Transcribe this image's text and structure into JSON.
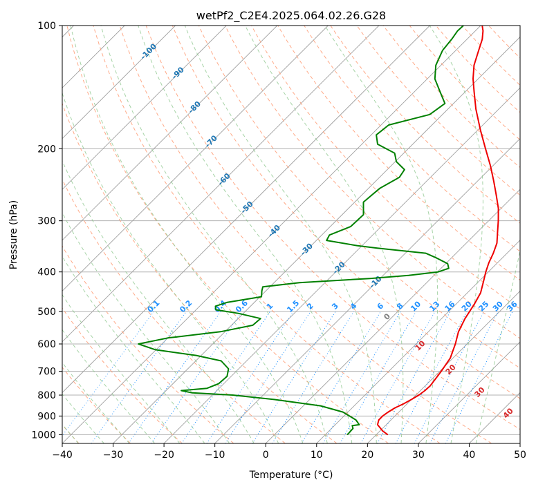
{
  "chart_data": {
    "type": "line",
    "title": "wetPf2_C2E4.2025.064.02.26.G28",
    "xlabel": "Temperature (°C)",
    "ylabel": "Pressure (hPa)",
    "xlim": [
      -40,
      50
    ],
    "ylim": [
      1050,
      100
    ],
    "y_scale": "log",
    "x_ticks": [
      "−40",
      "−30",
      "−20",
      "−10",
      "0",
      "10",
      "20",
      "30",
      "40",
      "50"
    ],
    "y_ticks": [
      "100",
      "200",
      "300",
      "400",
      "500",
      "600",
      "700",
      "800",
      "900",
      "1000"
    ],
    "grid": true,
    "colors": {
      "temperature": "#ee0000",
      "dewpoint": "#008000",
      "isotherm": "#a0a0a0",
      "dry_adiabat": "#ffa07a",
      "moist_adiabat": "#90c890",
      "mixing_ratio": "#1e90ff",
      "high_isotherm_label": "#1f77b4",
      "low_isotherm_label": "#d62728"
    },
    "series": [
      {
        "key": "temperature",
        "points": [
          [
            1000,
            22.3
          ],
          [
            980,
            20.6
          ],
          [
            960,
            19.3
          ],
          [
            945,
            18.3
          ],
          [
            920,
            17.6
          ],
          [
            900,
            17.6
          ],
          [
            880,
            17.9
          ],
          [
            860,
            18.4
          ],
          [
            840,
            19.3
          ],
          [
            820,
            20.0
          ],
          [
            800,
            20.6
          ],
          [
            780,
            20.9
          ],
          [
            760,
            21.0
          ],
          [
            700,
            20.3
          ],
          [
            650,
            19.5
          ],
          [
            600,
            17.7
          ],
          [
            560,
            15.9
          ],
          [
            520,
            14.6
          ],
          [
            480,
            13.6
          ],
          [
            450,
            12.6
          ],
          [
            420,
            10.8
          ],
          [
            400,
            9.5
          ],
          [
            380,
            8.3
          ],
          [
            360,
            7.3
          ],
          [
            340,
            6.0
          ],
          [
            320,
            4.0
          ],
          [
            300,
            1.9
          ],
          [
            280,
            -0.5
          ],
          [
            260,
            -3.5
          ],
          [
            240,
            -6.8
          ],
          [
            220,
            -10.5
          ],
          [
            200,
            -14.8
          ],
          [
            180,
            -19.5
          ],
          [
            160,
            -24.5
          ],
          [
            145,
            -28.3
          ],
          [
            135,
            -31.0
          ],
          [
            125,
            -33.5
          ],
          [
            115,
            -35.5
          ],
          [
            108,
            -37.0
          ],
          [
            103,
            -38.5
          ],
          [
            100,
            -39.7
          ]
        ]
      },
      {
        "key": "dewpoint",
        "points": [
          [
            1000,
            14.3
          ],
          [
            990,
            14.3
          ],
          [
            965,
            14.2
          ],
          [
            950,
            13.5
          ],
          [
            945,
            14.7
          ],
          [
            920,
            13.1
          ],
          [
            880,
            9.0
          ],
          [
            850,
            3.4
          ],
          [
            820,
            -7.0
          ],
          [
            800,
            -16.0
          ],
          [
            790,
            -24.4
          ],
          [
            780,
            -27.0
          ],
          [
            770,
            -22.4
          ],
          [
            750,
            -21.0
          ],
          [
            720,
            -20.8
          ],
          [
            690,
            -22.0
          ],
          [
            660,
            -25.0
          ],
          [
            640,
            -31.0
          ],
          [
            620,
            -40.1
          ],
          [
            600,
            -44.6
          ],
          [
            580,
            -40.0
          ],
          [
            560,
            -30.9
          ],
          [
            540,
            -25.8
          ],
          [
            520,
            -25.6
          ],
          [
            505,
            -31.0
          ],
          [
            495,
            -36.1
          ],
          [
            485,
            -36.9
          ],
          [
            475,
            -35.4
          ],
          [
            460,
            -29.7
          ],
          [
            445,
            -30.8
          ],
          [
            435,
            -31.4
          ],
          [
            425,
            -25.0
          ],
          [
            415,
            -12.0
          ],
          [
            408,
            -5.0
          ],
          [
            400,
            0.1
          ],
          [
            392,
            1.5
          ],
          [
            382,
            0.4
          ],
          [
            370,
            -2.9
          ],
          [
            360,
            -6.0
          ],
          [
            350,
            -16.5
          ],
          [
            345,
            -21.0
          ],
          [
            335,
            -28.0
          ],
          [
            325,
            -28.5
          ],
          [
            310,
            -26.0
          ],
          [
            290,
            -25.8
          ],
          [
            270,
            -28.3
          ],
          [
            250,
            -27.8
          ],
          [
            235,
            -26.1
          ],
          [
            225,
            -26.6
          ],
          [
            215,
            -29.8
          ],
          [
            205,
            -31.8
          ],
          [
            195,
            -36.9
          ],
          [
            185,
            -39.0
          ],
          [
            175,
            -38.5
          ],
          [
            165,
            -32.5
          ],
          [
            155,
            -31.7
          ],
          [
            145,
            -35.0
          ],
          [
            135,
            -38.5
          ],
          [
            125,
            -41.0
          ],
          [
            115,
            -42.6
          ],
          [
            108,
            -43.0
          ],
          [
            103,
            -43.5
          ],
          [
            100,
            -43.4
          ]
        ]
      }
    ],
    "dry_adiabat_labels": [
      "0",
      "10",
      "20",
      "30",
      "40"
    ],
    "isotherm_labels": [
      "-100",
      "-90",
      "-80",
      "-70",
      "-60",
      "-50",
      "-40",
      "-30",
      "-20",
      "-10"
    ],
    "mixing_ratio_labels": [
      "0.1",
      "0.2",
      "0.4",
      "0.6",
      "1",
      "1.5",
      "2",
      "3",
      "4",
      "6",
      "8",
      "10",
      "13",
      "16",
      "20",
      "25",
      "30",
      "36"
    ]
  }
}
